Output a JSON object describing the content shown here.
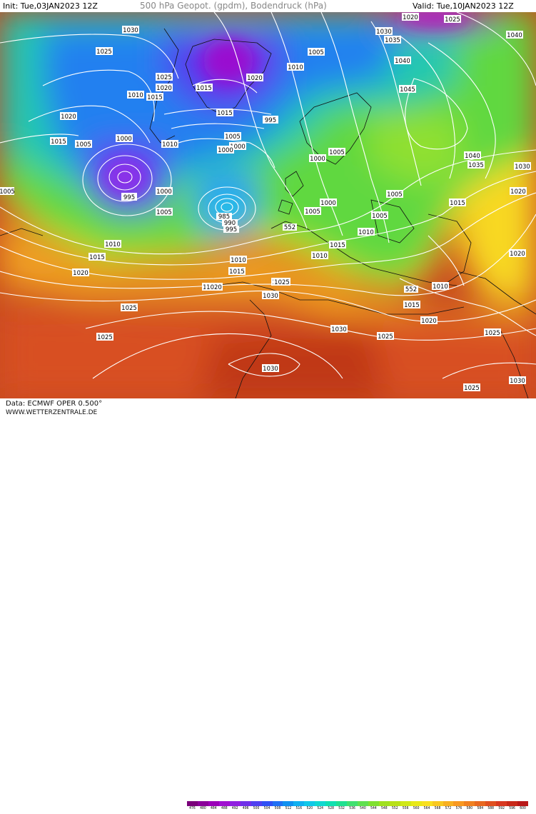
{
  "header": {
    "init": "Init: Tue,03JAN2023 12Z",
    "title": "500 hPa Geopot. (gpdm), Bodendruck (hPa)",
    "valid": "Valid: Tue,10JAN2023 12Z"
  },
  "footer": {
    "data_source": "Data: ECMWF OPER 0.500°",
    "website": "WWW.WETTERZENTRALE.DE"
  },
  "scale": {
    "values": [
      "476",
      "480",
      "484",
      "488",
      "492",
      "496",
      "500",
      "504",
      "508",
      "512",
      "516",
      "520",
      "524",
      "528",
      "532",
      "536",
      "540",
      "544",
      "548",
      "552",
      "556",
      "560",
      "564",
      "568",
      "572",
      "576",
      "580",
      "584",
      "588",
      "592",
      "596",
      "600"
    ],
    "colors": [
      "#7a007a",
      "#8a009a",
      "#9a00b8",
      "#a010d0",
      "#9020e0",
      "#7030e8",
      "#5040f0",
      "#3050f4",
      "#2070f4",
      "#1090f0",
      "#10b0f0",
      "#10c8e8",
      "#10d8d0",
      "#10e0b0",
      "#20e090",
      "#40e070",
      "#60e050",
      "#80e030",
      "#a0e020",
      "#b8e018",
      "#d0e818",
      "#e8e818",
      "#f8e020",
      "#f8c820",
      "#f8b020",
      "#f89820",
      "#f08020",
      "#e86820",
      "#e05020",
      "#d83820",
      "#c82818",
      "#b81818"
    ]
  },
  "isobar_labels": [
    "1030",
    "1025",
    "1020",
    "1025",
    "1010",
    "1015",
    "1020",
    "1015",
    "1010",
    "1005",
    "1000",
    "995",
    "1000",
    "1005",
    "1010",
    "1015",
    "1020",
    "1015",
    "1025",
    "1010",
    "1020",
    "1030",
    "1025",
    "1025",
    "1005",
    "1020",
    "1015",
    "1010",
    "1015",
    "1000",
    "1005",
    "1000",
    "995",
    "1005",
    "985",
    "990",
    "995",
    "1005",
    "1000",
    "1005",
    "1000",
    "1005",
    "1010",
    "1015",
    "1020",
    "1030",
    "1025",
    "1030",
    "1035",
    "1040",
    "1045",
    "1040",
    "1035",
    "1030",
    "1020",
    "1025",
    "1040",
    "1020",
    "1015",
    "1010",
    "1005",
    "1010",
    "1015",
    "1020",
    "1025",
    "1030",
    "1025",
    "1030",
    "1025",
    "1020"
  ],
  "geopotential_labels": [
    "552",
    "552"
  ]
}
